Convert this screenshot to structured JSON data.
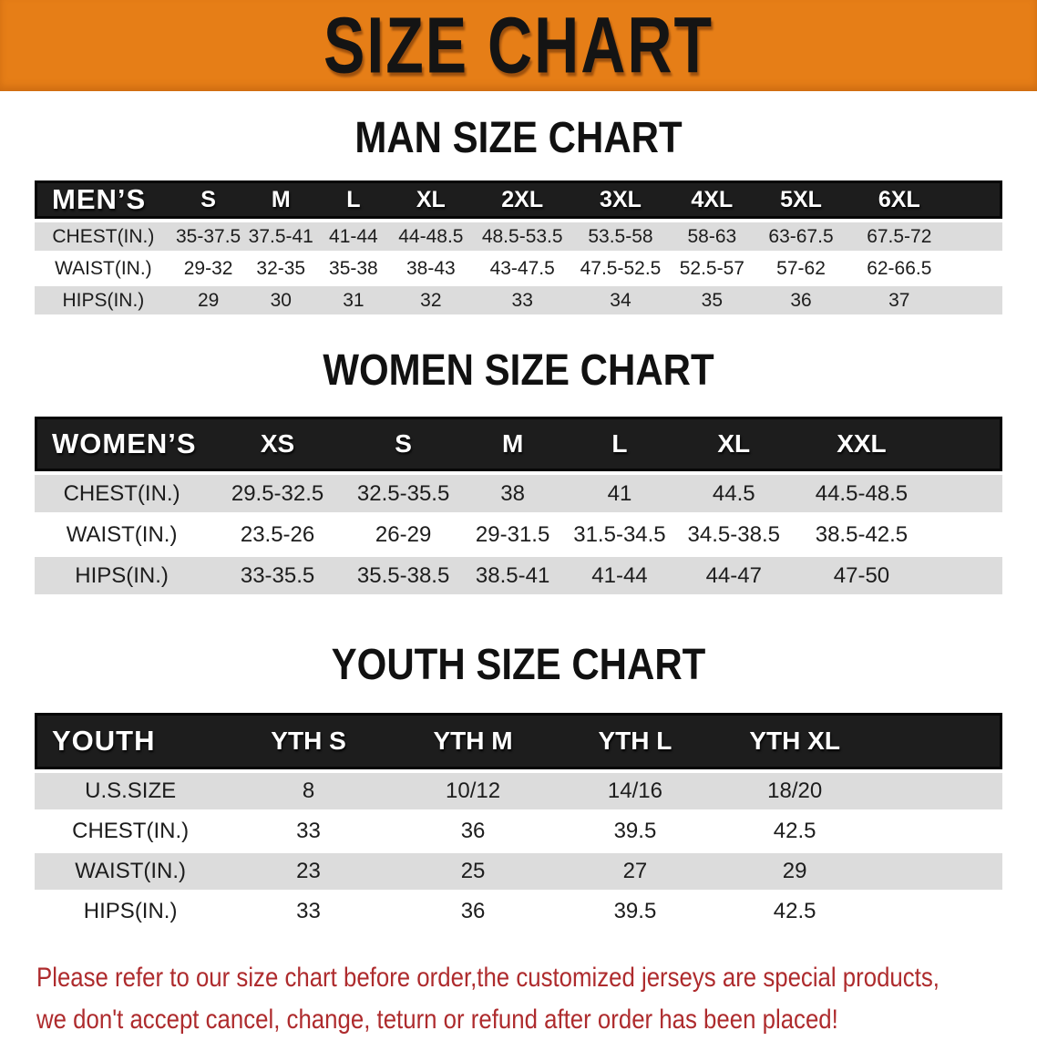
{
  "colors": {
    "banner_bg": "#E67E17",
    "header_band": "#1D1D1D",
    "stripe_gray": "#DCDCDC",
    "disclaimer_red": "#AE2B2D",
    "heading_text": "#111111"
  },
  "banner": {
    "title": "SIZE CHART"
  },
  "sections": [
    {
      "heading": "MAN SIZE CHART",
      "table": {
        "header_label": "MEN’S",
        "columns": [
          "S",
          "M",
          "L",
          "XL",
          "2XL",
          "3XL",
          "4XL",
          "5XL",
          "6XL"
        ],
        "rows": [
          {
            "label": "CHEST(IN.)",
            "values": [
              "35-37.5",
              "37.5-41",
              "41-44",
              "44-48.5",
              "48.5-53.5",
              "53.5-58",
              "58-63",
              "63-67.5",
              "67.5-72"
            ]
          },
          {
            "label": "WAIST(IN.)",
            "values": [
              "29-32",
              "32-35",
              "35-38",
              "38-43",
              "43-47.5",
              "47.5-52.5",
              "52.5-57",
              "57-62",
              "62-66.5"
            ]
          },
          {
            "label": "HIPS(IN.)",
            "values": [
              "29",
              "30",
              "31",
              "32",
              "33",
              "34",
              "35",
              "36",
              "37"
            ]
          }
        ]
      }
    },
    {
      "heading": "WOMEN SIZE CHART",
      "table": {
        "header_label": "WOMEN’S",
        "columns": [
          "XS",
          "S",
          "M",
          "L",
          "XL",
          "XXL"
        ],
        "rows": [
          {
            "label": "CHEST(IN.)",
            "values": [
              "29.5-32.5",
              "32.5-35.5",
              "38",
              "41",
              "44.5",
              "44.5-48.5"
            ]
          },
          {
            "label": "WAIST(IN.)",
            "values": [
              "23.5-26",
              "26-29",
              "29-31.5",
              "31.5-34.5",
              "34.5-38.5",
              "38.5-42.5"
            ]
          },
          {
            "label": "HIPS(IN.)",
            "values": [
              "33-35.5",
              "35.5-38.5",
              "38.5-41",
              "41-44",
              "44-47",
              "47-50"
            ]
          }
        ]
      }
    },
    {
      "heading": "YOUTH SIZE CHART",
      "table": {
        "header_label": "YOUTH",
        "columns": [
          "YTH S",
          "YTH M",
          "YTH L",
          "YTH XL"
        ],
        "rows": [
          {
            "label": "U.S.SIZE",
            "values": [
              "8",
              "10/12",
              "14/16",
              "18/20"
            ]
          },
          {
            "label": "CHEST(IN.)",
            "values": [
              "33",
              "36",
              "39.5",
              "42.5"
            ]
          },
          {
            "label": "WAIST(IN.)",
            "values": [
              "23",
              "25",
              "27",
              "29"
            ]
          },
          {
            "label": "HIPS(IN.)",
            "values": [
              "33",
              "36",
              "39.5",
              "42.5"
            ]
          }
        ]
      }
    }
  ],
  "footer": {
    "line1": "Please refer to our size chart before order,the customized jerseys are special products,",
    "line2": "we don't accept cancel, change, teturn or refund after order has been placed!"
  }
}
